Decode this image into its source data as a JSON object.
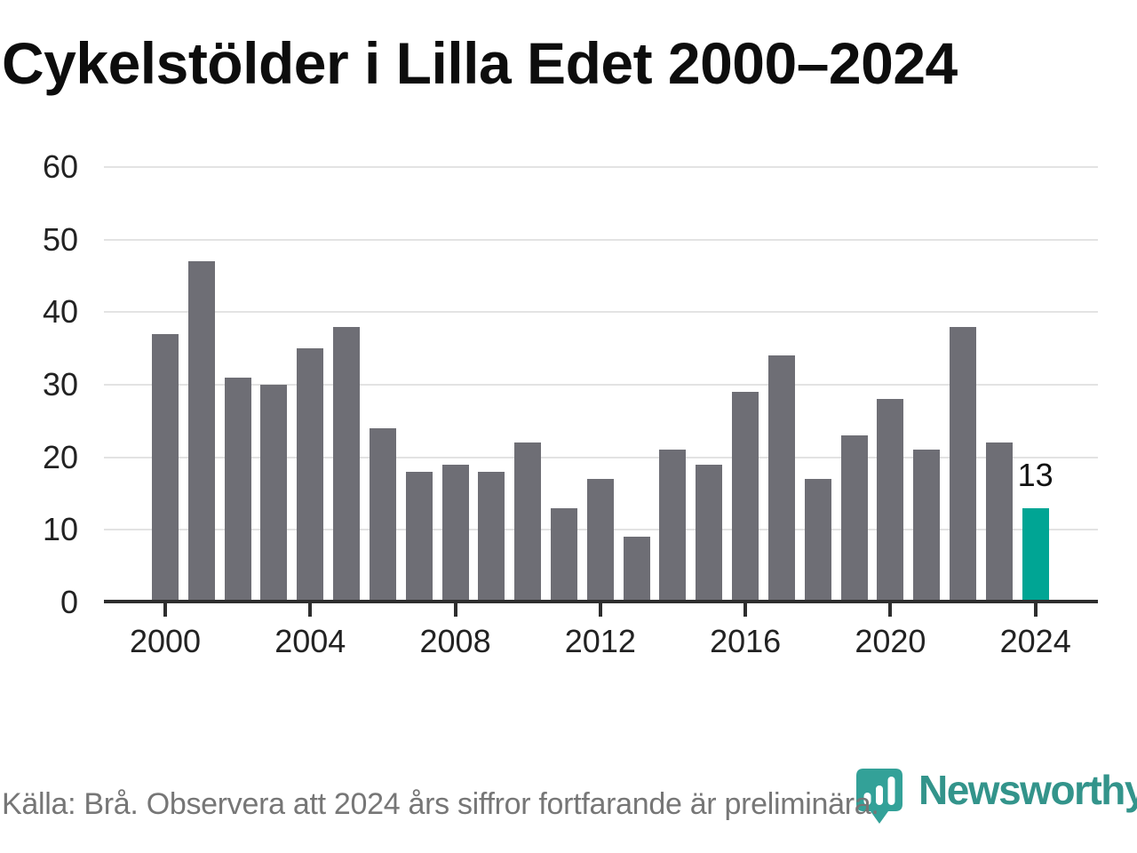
{
  "title": "Cykelstölder i Lilla Edet 2000–2024",
  "footer": {
    "source_note": "Källa: Brå. Observera att 2024 års siffror fortfarande är preliminära."
  },
  "logo": {
    "name": "Newsworthy",
    "icon": "newsworthy-pin-barchart-icon",
    "wordmark_color": "#33948b",
    "icon_color": "#33a198"
  },
  "colors": {
    "bar_default": "#6e6e75",
    "bar_highlight": "#00a594",
    "axis": "#2e2e2e",
    "gridline": "#e3e3e3",
    "tick_label": "#222222",
    "value_label": "#111111",
    "footer_text": "#767676"
  },
  "chart_data": {
    "type": "bar",
    "title": "Cykelstölder i Lilla Edet 2000–2024",
    "x": [
      2000,
      2001,
      2002,
      2003,
      2004,
      2005,
      2006,
      2007,
      2008,
      2009,
      2010,
      2011,
      2012,
      2013,
      2014,
      2015,
      2016,
      2017,
      2018,
      2019,
      2020,
      2021,
      2022,
      2023,
      2024
    ],
    "values": [
      37,
      47,
      31,
      30,
      35,
      38,
      24,
      18,
      19,
      18,
      22,
      13,
      17,
      9,
      21,
      19,
      29,
      34,
      17,
      23,
      28,
      21,
      38,
      22,
      13
    ],
    "highlight_index": 24,
    "highlight_value_label": "13",
    "x_tick_labels": [
      "2000",
      "2004",
      "2008",
      "2012",
      "2016",
      "2020",
      "2024"
    ],
    "x_tick_years": [
      2000,
      2004,
      2008,
      2012,
      2016,
      2020,
      2024
    ],
    "y_ticks": [
      0,
      10,
      20,
      30,
      40,
      50,
      60
    ],
    "ylim": [
      0,
      60
    ],
    "xlabel": "",
    "ylabel": "",
    "grid": "horizontal",
    "legend": "none"
  }
}
